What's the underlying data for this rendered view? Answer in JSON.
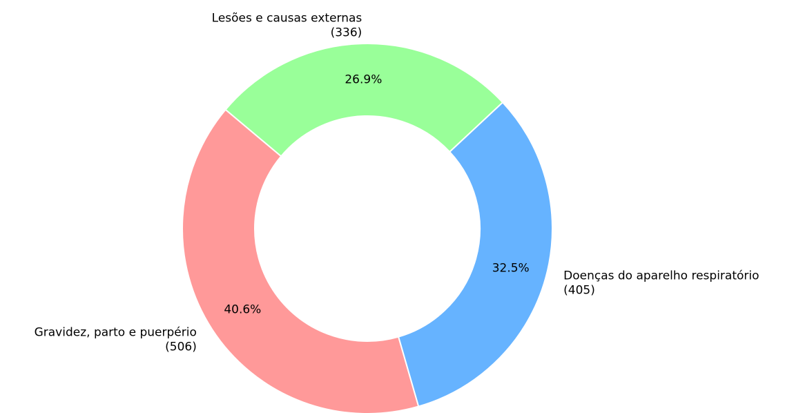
{
  "chart_data": {
    "type": "donut",
    "categories": [
      "Gravidez, parto e puerpério",
      "Doenças do aparelho respiratório",
      "Lesões e causas externas"
    ],
    "values": [
      506,
      405,
      336
    ],
    "value_labels": [
      "(506)",
      "(405)",
      "(336)"
    ],
    "percent_labels": [
      "40.6%",
      "32.5%",
      "26.9%"
    ],
    "colors": [
      "#ff9999",
      "#66b3ff",
      "#99ff99"
    ]
  }
}
